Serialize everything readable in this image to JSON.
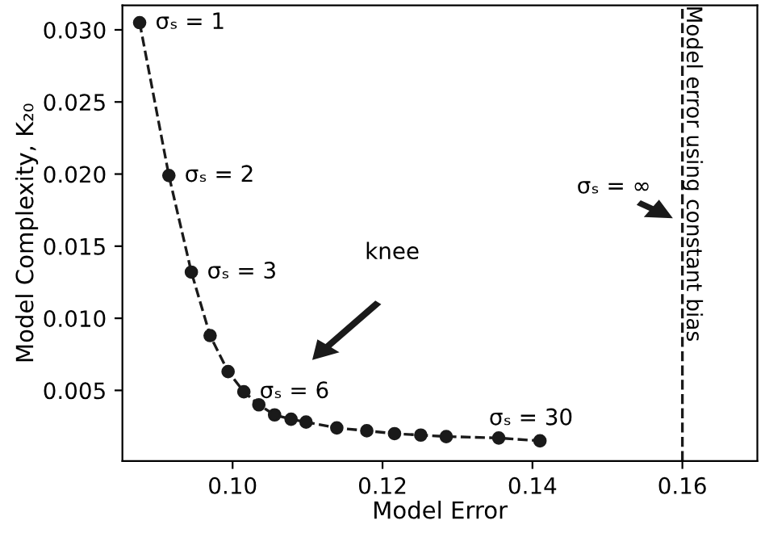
{
  "chart_data": {
    "type": "line",
    "xlabel": "Model Error",
    "ylabel": "Model Complexity, K₂₀",
    "x": [
      0.0876,
      0.0915,
      0.0945,
      0.097,
      0.0994,
      0.1015,
      0.1035,
      0.1056,
      0.1078,
      0.1098,
      0.1139,
      0.1179,
      0.1216,
      0.1251,
      0.1285,
      0.1355,
      0.141
    ],
    "series": [
      {
        "color": "#1a1a1a",
        "values": [
          0.0305,
          0.0199,
          0.0132,
          0.0088,
          0.0063,
          0.0049,
          0.004,
          0.0033,
          0.003,
          0.0028,
          0.0024,
          0.0022,
          0.002,
          0.0019,
          0.0018,
          0.0017,
          0.0015
        ]
      }
    ],
    "marker": "circle",
    "line_style": "dashed",
    "grid": false,
    "xlim": [
      0.0853,
      0.17
    ],
    "ylim": [
      0.0001,
      0.0317
    ],
    "xticks": [
      {
        "value": 0.1,
        "label": "0.10"
      },
      {
        "value": 0.12,
        "label": "0.12"
      },
      {
        "value": 0.14,
        "label": "0.14"
      },
      {
        "value": 0.16,
        "label": "0.16"
      }
    ],
    "yticks": [
      {
        "value": 0.005,
        "label": "0.005"
      },
      {
        "value": 0.01,
        "label": "0.010"
      },
      {
        "value": 0.015,
        "label": "0.015"
      },
      {
        "value": 0.02,
        "label": "0.020"
      },
      {
        "value": 0.025,
        "label": "0.025"
      },
      {
        "value": 0.03,
        "label": "0.030"
      }
    ],
    "ref_lines": [
      {
        "axis": "x",
        "value": 0.16,
        "label": "Model error using constant bias",
        "color": "#1a1a1a",
        "line_style": "dashed"
      }
    ],
    "annotations": [
      {
        "text": "σₛ = 1",
        "x": 0.0876,
        "y": 0.0305
      },
      {
        "text": "σₛ = 2",
        "x": 0.0915,
        "y": 0.0199
      },
      {
        "text": "σₛ = 3",
        "x": 0.0945,
        "y": 0.0132
      },
      {
        "text": "σₛ = 6",
        "x": 0.1015,
        "y": 0.0049
      },
      {
        "text": "σₛ = 30",
        "x": 0.141,
        "y": 0.0015
      },
      "knee",
      "σₛ = ∞"
    ]
  }
}
